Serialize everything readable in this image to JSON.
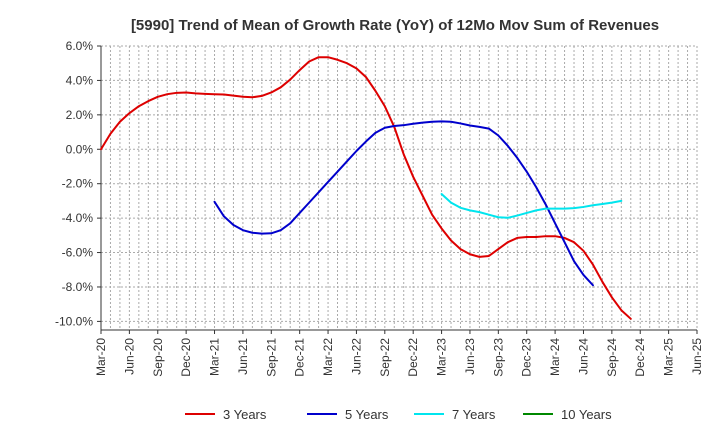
{
  "chart_data": {
    "type": "line",
    "title": "[5990]  Trend of Mean of Growth Rate (YoY) of 12Mo Mov Sum of Revenues",
    "xlabel": "",
    "ylabel": "",
    "ylim": [
      -10.5,
      6.0
    ],
    "y_ticks": [
      6,
      4,
      2,
      0,
      -2,
      -4,
      -6,
      -8,
      -10
    ],
    "y_tick_labels": [
      "6.0%",
      "4.0%",
      "2.0%",
      "0.0%",
      "-2.0%",
      "-4.0%",
      "-6.0%",
      "-8.0%",
      "-10.0%"
    ],
    "x_tick_labels": [
      "Mar-20",
      "Jun-20",
      "Sep-20",
      "Dec-20",
      "Mar-21",
      "Jun-21",
      "Sep-21",
      "Dec-21",
      "Mar-22",
      "Jun-22",
      "Sep-22",
      "Dec-22",
      "Mar-23",
      "Jun-23",
      "Sep-23",
      "Dec-23",
      "Mar-24",
      "Jun-24",
      "Sep-24",
      "Dec-24",
      "Mar-25",
      "Jun-25"
    ],
    "grid": true,
    "legend_position": "bottom",
    "series": [
      {
        "name": "3 Years",
        "color": "#dd0000",
        "start_index": 0,
        "values": [
          0.0,
          0.9,
          1.6,
          2.1,
          2.5,
          2.8,
          3.05,
          3.2,
          3.28,
          3.3,
          3.25,
          3.22,
          3.2,
          3.18,
          3.12,
          3.05,
          3.02,
          3.1,
          3.3,
          3.6,
          4.05,
          4.6,
          5.1,
          5.35,
          5.35,
          5.2,
          5.0,
          4.7,
          4.2,
          3.4,
          2.5,
          1.3,
          -0.3,
          -1.6,
          -2.7,
          -3.8,
          -4.6,
          -5.3,
          -5.8,
          -6.1,
          -6.25,
          -6.2,
          -5.8,
          -5.4,
          -5.15,
          -5.1,
          -5.1,
          -5.05,
          -5.05,
          -5.15,
          -5.4,
          -5.9,
          -6.7,
          -7.7,
          -8.6,
          -9.35,
          -9.85
        ]
      },
      {
        "name": "5 Years",
        "color": "#0000cc",
        "start_index": 12,
        "values": [
          -3.05,
          -3.9,
          -4.4,
          -4.7,
          -4.85,
          -4.9,
          -4.88,
          -4.7,
          -4.3,
          -3.7,
          -3.1,
          -2.5,
          -1.9,
          -1.3,
          -0.7,
          -0.1,
          0.45,
          0.95,
          1.25,
          1.35,
          1.4,
          1.48,
          1.55,
          1.6,
          1.62,
          1.6,
          1.5,
          1.38,
          1.3,
          1.2,
          0.8,
          0.2,
          -0.5,
          -1.3,
          -2.2,
          -3.2,
          -4.3,
          -5.4,
          -6.5,
          -7.3,
          -7.9
        ]
      },
      {
        "name": "7 Years",
        "color": "#00e5ee",
        "start_index": 36,
        "values": [
          -2.6,
          -3.1,
          -3.4,
          -3.55,
          -3.65,
          -3.8,
          -3.95,
          -3.98,
          -3.85,
          -3.7,
          -3.55,
          -3.45,
          -3.45,
          -3.45,
          -3.42,
          -3.35,
          -3.25,
          -3.18,
          -3.1,
          -3.0
        ]
      },
      {
        "name": "10 Years",
        "color": "#008800",
        "start_index": 0,
        "values": []
      }
    ]
  }
}
